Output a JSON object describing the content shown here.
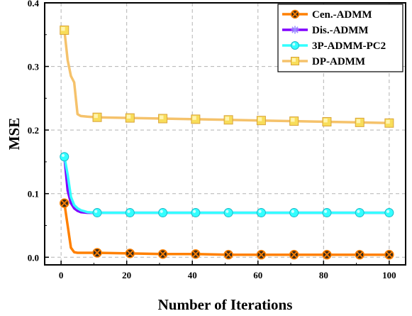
{
  "chart_data": {
    "type": "line",
    "title": "",
    "xlabel": "Number of Iterations",
    "ylabel": "MSE",
    "xlim": [
      -5,
      105
    ],
    "ylim": [
      -0.012,
      0.4
    ],
    "xticks": [
      0,
      20,
      40,
      60,
      80,
      100
    ],
    "xtick_labels": [
      "0",
      "20",
      "40",
      "60",
      "80",
      "100"
    ],
    "yticks": [
      0.0,
      0.1,
      0.2,
      0.3,
      0.4
    ],
    "ytick_labels": [
      "0.0",
      "0.1",
      "0.2",
      "0.3",
      "0.4"
    ],
    "grid": true,
    "legend_position": "top-right",
    "x": [
      1,
      2,
      3,
      4,
      5,
      6,
      8,
      11,
      21,
      31,
      41,
      51,
      61,
      71,
      81,
      91,
      100
    ],
    "marker_x": [
      1,
      11,
      21,
      31,
      41,
      51,
      61,
      71,
      81,
      91,
      100
    ],
    "series": [
      {
        "name": "Cen.-ADMM",
        "color": "#ff8000",
        "marker": "circle-x",
        "marker_fill": "#3a2a1a",
        "values": [
          0.085,
          0.05,
          0.015,
          0.008,
          0.007,
          0.007,
          0.007,
          0.007,
          0.006,
          0.005,
          0.005,
          0.004,
          0.004,
          0.004,
          0.004,
          0.004,
          0.004
        ]
      },
      {
        "name": "Dis.-ADMM",
        "color": "#8000ff",
        "marker": "star",
        "marker_fill": "#9a8cff",
        "values": [
          0.158,
          0.105,
          0.085,
          0.077,
          0.073,
          0.071,
          0.07,
          0.07,
          0.07,
          0.07,
          0.07,
          0.07,
          0.07,
          0.07,
          0.07,
          0.07,
          0.07
        ]
      },
      {
        "name": "3P-ADMM-PC2",
        "color": "#33ffff",
        "marker": "circle",
        "marker_fill": "#33ffff",
        "values": [
          0.158,
          0.13,
          0.095,
          0.082,
          0.077,
          0.074,
          0.071,
          0.07,
          0.07,
          0.07,
          0.07,
          0.07,
          0.07,
          0.07,
          0.07,
          0.07,
          0.07
        ]
      },
      {
        "name": "DP-ADMM",
        "color": "#f5c26b",
        "marker": "square",
        "marker_fill": "#f8dd5a",
        "values": [
          0.357,
          0.31,
          0.285,
          0.275,
          0.225,
          0.222,
          0.221,
          0.22,
          0.219,
          0.218,
          0.217,
          0.216,
          0.215,
          0.214,
          0.213,
          0.212,
          0.211
        ]
      }
    ]
  }
}
